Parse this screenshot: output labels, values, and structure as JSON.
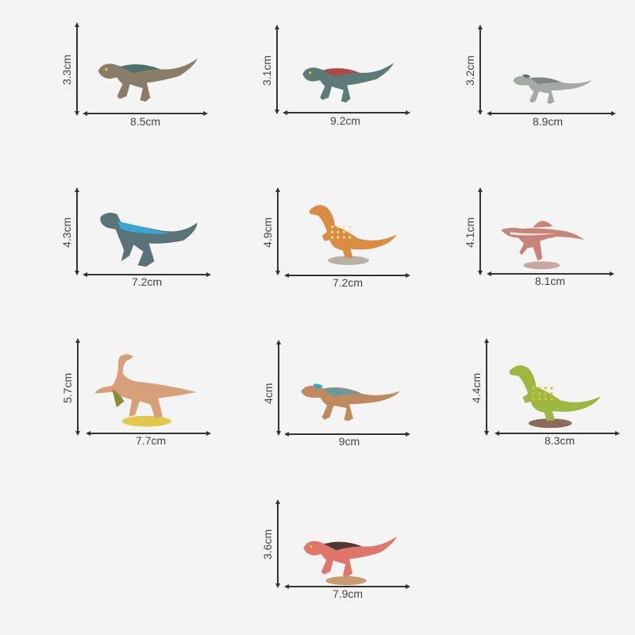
{
  "items": [
    {
      "height": "3.3cm",
      "width": "8.5cm",
      "body": "#8a7d68",
      "accent": "#3f6e6a",
      "style": "trex"
    },
    {
      "height": "3.1cm",
      "width": "9.2cm",
      "body": "#5b7a78",
      "accent": "#c83a34",
      "style": "trex"
    },
    {
      "height": "3.2cm",
      "width": "8.9cm",
      "body": "#a6aaa4",
      "accent": "#5c6e6c",
      "style": "slim"
    },
    {
      "height": "4.3cm",
      "width": "7.2cm",
      "body": "#5a7378",
      "accent": "#3aa6d8",
      "style": "raptor"
    },
    {
      "height": "4.9cm",
      "width": "7.2cm",
      "body": "#d98c42",
      "accent": "#f0e08a",
      "style": "upright",
      "base": "#b8b0a4"
    },
    {
      "height": "4.1cm",
      "width": "8.1cm",
      "body": "#c88478",
      "accent": "#f0ebe6",
      "style": "spino",
      "base": "#c9a8a4"
    },
    {
      "height": "5.7cm",
      "width": "7.7cm",
      "body": "#d8a07a",
      "accent": "#8a8a3a",
      "style": "ornitho",
      "base": "#e2c84a"
    },
    {
      "height": "4cm",
      "width": "9cm",
      "body": "#c08a5e",
      "accent": "#2aa8c8",
      "style": "slim"
    },
    {
      "height": "4.4cm",
      "width": "8.3cm",
      "body": "#9cb842",
      "accent": "#e0c030",
      "style": "upright",
      "base": "#8a6a5a"
    },
    {
      "height": "3.6cm",
      "width": "7.9cm",
      "body": "#e0766a",
      "accent": "#2a2a2a",
      "style": "trex",
      "base": "#c89a70"
    }
  ]
}
